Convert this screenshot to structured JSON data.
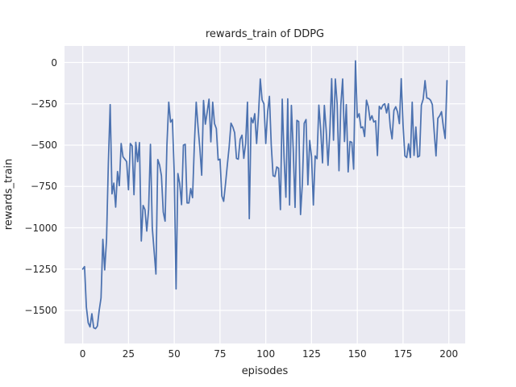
{
  "title": "rewards_train of DDPG",
  "colors": {
    "line": "#4c72b0",
    "axes_background": "#eaeaf2",
    "gridline": "#ffffff",
    "text": "#262626",
    "figure_background": "#ffffff"
  },
  "chart_data": {
    "type": "line",
    "title": "rewards_train of DDPG",
    "xlabel": "episodes",
    "ylabel": "rewards_train",
    "xlim": [
      -9.95,
      208.95
    ],
    "ylim": [
      -1700,
      100
    ],
    "xticks": [
      0,
      25,
      50,
      75,
      100,
      125,
      150,
      175,
      200
    ],
    "yticks": [
      0,
      -250,
      -500,
      -750,
      -1000,
      -1250,
      -1500
    ],
    "grid": true,
    "legend_position": "none",
    "series": [
      {
        "name": "rewards_train",
        "x_start": 0,
        "x_step": 1,
        "values": [
          -1250,
          -1235,
          -1480,
          -1575,
          -1600,
          -1520,
          -1605,
          -1610,
          -1595,
          -1500,
          -1425,
          -1070,
          -1255,
          -1075,
          -610,
          -255,
          -795,
          -730,
          -875,
          -660,
          -745,
          -490,
          -570,
          -585,
          -600,
          -770,
          -490,
          -505,
          -800,
          -483,
          -600,
          -485,
          -1080,
          -865,
          -890,
          -1020,
          -890,
          -495,
          -1000,
          -1140,
          -1280,
          -587,
          -620,
          -685,
          -905,
          -960,
          -500,
          -240,
          -361,
          -345,
          -670,
          -1370,
          -672,
          -733,
          -860,
          -500,
          -495,
          -850,
          -850,
          -763,
          -818,
          -493,
          -240,
          -390,
          -520,
          -682,
          -230,
          -373,
          -300,
          -222,
          -480,
          -240,
          -370,
          -400,
          -590,
          -585,
          -808,
          -840,
          -735,
          -620,
          -510,
          -367,
          -390,
          -425,
          -580,
          -585,
          -465,
          -440,
          -580,
          -490,
          -240,
          -945,
          -335,
          -365,
          -310,
          -490,
          -320,
          -100,
          -227,
          -250,
          -490,
          -300,
          -205,
          -500,
          -685,
          -690,
          -632,
          -640,
          -890,
          -222,
          -578,
          -815,
          -220,
          -862,
          -260,
          -525,
          -877,
          -350,
          -358,
          -920,
          -730,
          -368,
          -345,
          -740,
          -472,
          -570,
          -862,
          -565,
          -582,
          -258,
          -405,
          -607,
          -260,
          -408,
          -622,
          -420,
          -98,
          -470,
          -100,
          -250,
          -655,
          -258,
          -100,
          -478,
          -255,
          -662,
          -478,
          -483,
          -645,
          10,
          -333,
          -310,
          -395,
          -390,
          -448,
          -228,
          -267,
          -348,
          -322,
          -360,
          -353,
          -563,
          -265,
          -282,
          -258,
          -250,
          -305,
          -250,
          -390,
          -462,
          -290,
          -268,
          -300,
          -370,
          -98,
          -378,
          -565,
          -575,
          -492,
          -575,
          -240,
          -562,
          -390,
          -572,
          -565,
          -258,
          -222,
          -110,
          -215,
          -218,
          -228,
          -255,
          -418,
          -565,
          -338,
          -322,
          -298,
          -388,
          -460,
          -110
        ]
      }
    ]
  }
}
